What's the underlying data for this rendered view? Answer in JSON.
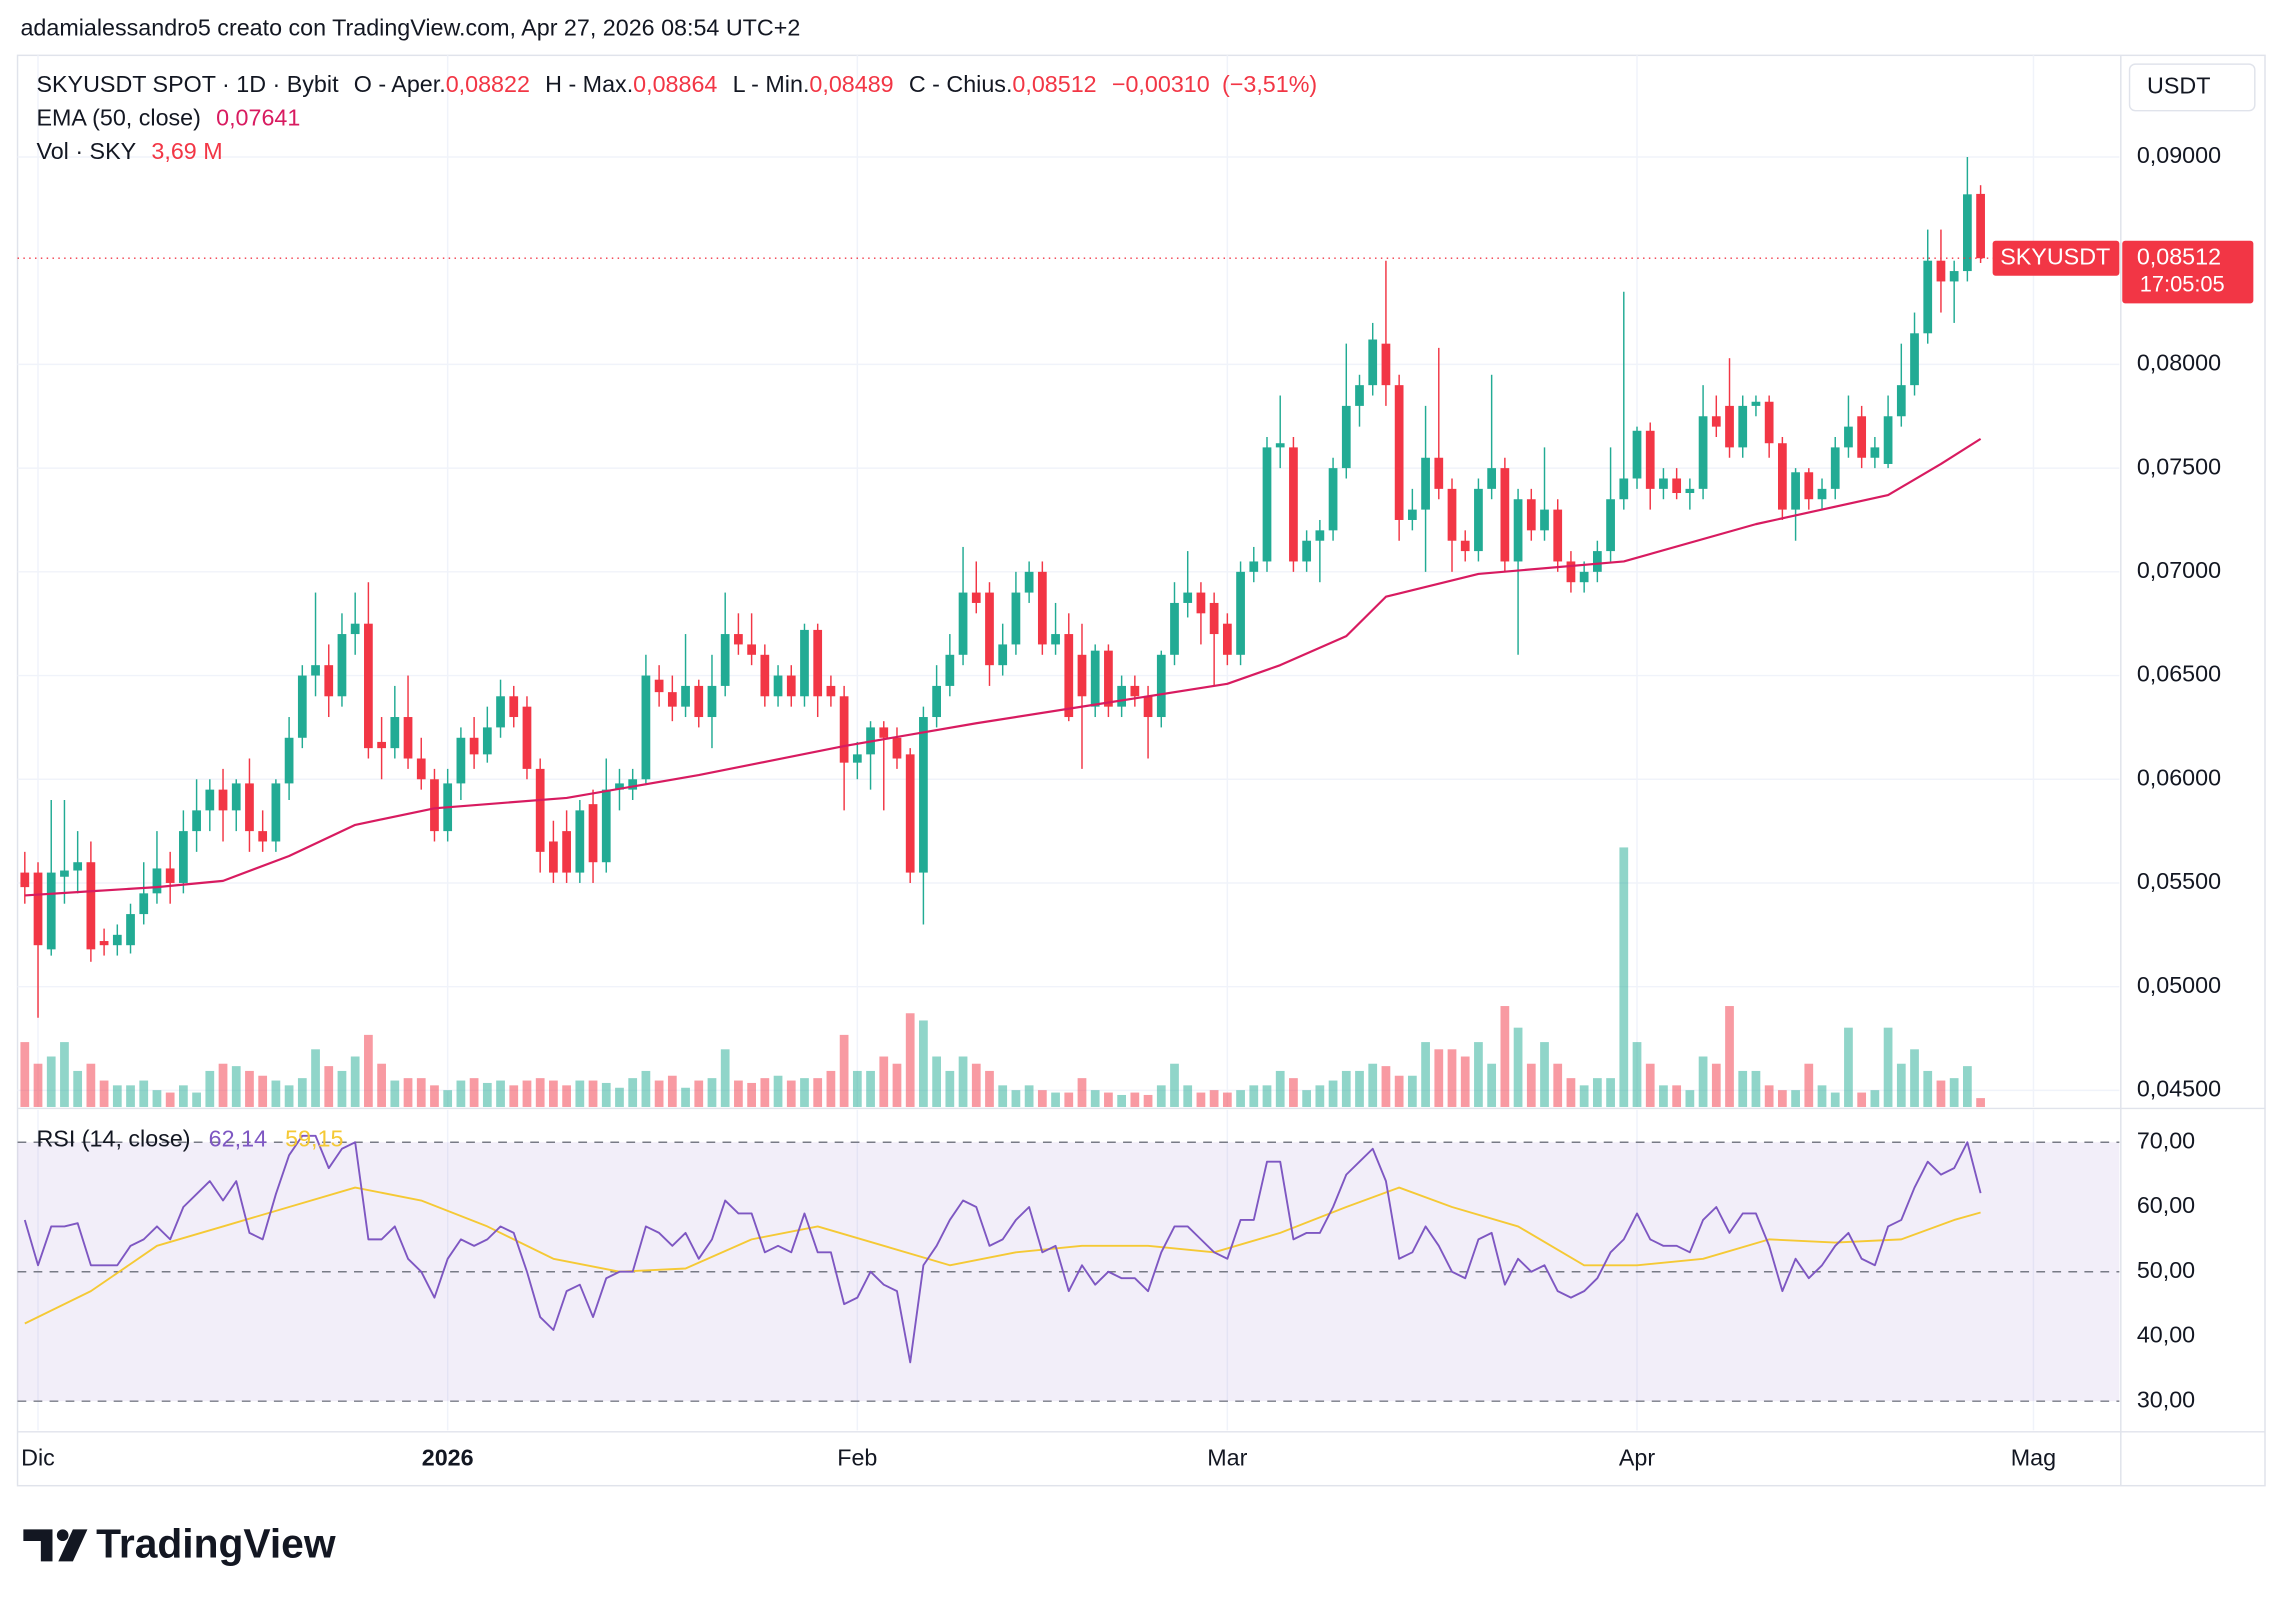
{
  "chart_data": {
    "type": "candlestick",
    "header": "adamialessandro5 creato con TradingView.com, Apr 27, 2026 08:54 UTC+2",
    "symbol": "SKYUSDT SPOT · 1D · Bybit",
    "legend": {
      "open_label": "O - Aper.",
      "open": {
        "value": 0.08822,
        "label": "0,08822"
      },
      "high_label": "H - Max.",
      "high": {
        "value": 0.08864,
        "label": "0,08864"
      },
      "low_label": "L - Min.",
      "low": {
        "value": 0.08489,
        "label": "0,08489"
      },
      "close_label": "C - Chius.",
      "close": {
        "value": 0.08512,
        "label": "0,08512"
      },
      "change": {
        "value": -0.0031,
        "label": "−0,00310"
      },
      "change_pct": {
        "value": -3.51,
        "label": "(−3,51%)"
      },
      "ema_label": "EMA (50, close)",
      "ema_last": {
        "value": 0.07641,
        "label": "0,07641"
      },
      "vol_label": "Vol · SKY",
      "vol_last": {
        "value": 3.69,
        "label": "3,69 M"
      }
    },
    "currency": "USDT",
    "price_tag": {
      "symbol": "SKYUSDT",
      "price": {
        "value": 0.08512,
        "label": "0,08512"
      },
      "countdown": "17:05:05"
    },
    "brand": "TradingView",
    "up_color": "#22ab94",
    "down_color": "#f23645",
    "grid": true,
    "xlim": [
      -0.55,
      158.5
    ],
    "xticks": [
      {
        "value": 1,
        "label": "Dic"
      },
      {
        "value": 32,
        "label": "2026"
      },
      {
        "value": 63,
        "label": "Feb"
      },
      {
        "value": 91,
        "label": "Mar"
      },
      {
        "value": 122,
        "label": "Apr"
      },
      {
        "value": 152,
        "label": "Mag"
      }
    ],
    "ylim": [
      0.0442,
      0.0949
    ],
    "yticks": [
      {
        "value": 0.045,
        "label": "0,04500"
      },
      {
        "value": 0.05,
        "label": "0,05000"
      },
      {
        "value": 0.055,
        "label": "0,05500"
      },
      {
        "value": 0.06,
        "label": "0,06000"
      },
      {
        "value": 0.065,
        "label": "0,06500"
      },
      {
        "value": 0.07,
        "label": "0,07000"
      },
      {
        "value": 0.075,
        "label": "0,07500"
      },
      {
        "value": 0.08,
        "label": "0,08000"
      },
      {
        "value": 0.09,
        "label": "0,09000"
      }
    ],
    "ohlc": [
      [
        0.0555,
        0.0565,
        0.054,
        0.0548
      ],
      [
        0.0555,
        0.056,
        0.0485,
        0.052
      ],
      [
        0.0518,
        0.059,
        0.0515,
        0.0555
      ],
      [
        0.0553,
        0.059,
        0.054,
        0.0556
      ],
      [
        0.0556,
        0.0575,
        0.0545,
        0.056
      ],
      [
        0.056,
        0.057,
        0.0512,
        0.0518
      ],
      [
        0.0522,
        0.0528,
        0.0515,
        0.052
      ],
      [
        0.052,
        0.053,
        0.0515,
        0.0525
      ],
      [
        0.052,
        0.054,
        0.0516,
        0.0535
      ],
      [
        0.0535,
        0.056,
        0.053,
        0.0545
      ],
      [
        0.0545,
        0.0575,
        0.054,
        0.0557
      ],
      [
        0.0557,
        0.0565,
        0.054,
        0.055
      ],
      [
        0.055,
        0.0585,
        0.0545,
        0.0575
      ],
      [
        0.0575,
        0.06,
        0.0565,
        0.0585
      ],
      [
        0.0585,
        0.06,
        0.0575,
        0.0595
      ],
      [
        0.0595,
        0.0605,
        0.057,
        0.0585
      ],
      [
        0.0585,
        0.06,
        0.0575,
        0.0598
      ],
      [
        0.0598,
        0.061,
        0.0565,
        0.0575
      ],
      [
        0.0575,
        0.0585,
        0.0565,
        0.057
      ],
      [
        0.057,
        0.06,
        0.0565,
        0.0598
      ],
      [
        0.0598,
        0.063,
        0.059,
        0.062
      ],
      [
        0.062,
        0.0655,
        0.0615,
        0.065
      ],
      [
        0.065,
        0.069,
        0.064,
        0.0655
      ],
      [
        0.0655,
        0.0665,
        0.063,
        0.064
      ],
      [
        0.064,
        0.068,
        0.0635,
        0.067
      ],
      [
        0.067,
        0.069,
        0.066,
        0.0675
      ],
      [
        0.0675,
        0.0695,
        0.061,
        0.0615
      ],
      [
        0.0618,
        0.063,
        0.06,
        0.0615
      ],
      [
        0.0615,
        0.0645,
        0.061,
        0.063
      ],
      [
        0.063,
        0.065,
        0.0605,
        0.061
      ],
      [
        0.061,
        0.062,
        0.0595,
        0.06
      ],
      [
        0.06,
        0.0605,
        0.057,
        0.0575
      ],
      [
        0.0575,
        0.0605,
        0.057,
        0.0598
      ],
      [
        0.0598,
        0.0625,
        0.059,
        0.062
      ],
      [
        0.062,
        0.063,
        0.0605,
        0.0612
      ],
      [
        0.0612,
        0.0635,
        0.0608,
        0.0625
      ],
      [
        0.0625,
        0.0648,
        0.062,
        0.064
      ],
      [
        0.064,
        0.0645,
        0.0625,
        0.063
      ],
      [
        0.0635,
        0.064,
        0.06,
        0.0605
      ],
      [
        0.0605,
        0.061,
        0.0555,
        0.0565
      ],
      [
        0.057,
        0.058,
        0.055,
        0.0555
      ],
      [
        0.0575,
        0.0585,
        0.055,
        0.0555
      ],
      [
        0.0555,
        0.059,
        0.055,
        0.0585
      ],
      [
        0.0588,
        0.0595,
        0.055,
        0.056
      ],
      [
        0.056,
        0.061,
        0.0555,
        0.0595
      ],
      [
        0.0595,
        0.0605,
        0.0585,
        0.0598
      ],
      [
        0.0595,
        0.0605,
        0.059,
        0.06
      ],
      [
        0.06,
        0.066,
        0.0598,
        0.065
      ],
      [
        0.0648,
        0.0655,
        0.0635,
        0.0642
      ],
      [
        0.0642,
        0.065,
        0.0628,
        0.0635
      ],
      [
        0.0635,
        0.067,
        0.063,
        0.0645
      ],
      [
        0.0645,
        0.0648,
        0.0625,
        0.063
      ],
      [
        0.063,
        0.066,
        0.0615,
        0.0645
      ],
      [
        0.0645,
        0.069,
        0.064,
        0.067
      ],
      [
        0.067,
        0.068,
        0.066,
        0.0665
      ],
      [
        0.0665,
        0.068,
        0.0655,
        0.066
      ],
      [
        0.066,
        0.0665,
        0.0635,
        0.064
      ],
      [
        0.064,
        0.0655,
        0.0635,
        0.065
      ],
      [
        0.065,
        0.0655,
        0.0635,
        0.064
      ],
      [
        0.064,
        0.0675,
        0.0635,
        0.0672
      ],
      [
        0.0672,
        0.0675,
        0.063,
        0.064
      ],
      [
        0.0645,
        0.065,
        0.0635,
        0.064
      ],
      [
        0.064,
        0.0645,
        0.0585,
        0.0608
      ],
      [
        0.0608,
        0.0618,
        0.06,
        0.0612
      ],
      [
        0.0612,
        0.0628,
        0.0595,
        0.0625
      ],
      [
        0.0625,
        0.0628,
        0.0585,
        0.062
      ],
      [
        0.062,
        0.0625,
        0.0605,
        0.061
      ],
      [
        0.0612,
        0.0615,
        0.055,
        0.0555
      ],
      [
        0.0555,
        0.0635,
        0.053,
        0.063
      ],
      [
        0.063,
        0.0655,
        0.0625,
        0.0645
      ],
      [
        0.0645,
        0.067,
        0.064,
        0.066
      ],
      [
        0.066,
        0.0712,
        0.0655,
        0.069
      ],
      [
        0.069,
        0.0705,
        0.068,
        0.0685
      ],
      [
        0.069,
        0.0695,
        0.0645,
        0.0655
      ],
      [
        0.0655,
        0.0675,
        0.065,
        0.0665
      ],
      [
        0.0665,
        0.07,
        0.066,
        0.069
      ],
      [
        0.069,
        0.0705,
        0.0685,
        0.07
      ],
      [
        0.07,
        0.0705,
        0.066,
        0.0665
      ],
      [
        0.0665,
        0.0685,
        0.066,
        0.067
      ],
      [
        0.067,
        0.068,
        0.0628,
        0.063
      ],
      [
        0.066,
        0.0675,
        0.0605,
        0.064
      ],
      [
        0.0635,
        0.0665,
        0.063,
        0.0662
      ],
      [
        0.0662,
        0.0665,
        0.063,
        0.0635
      ],
      [
        0.0635,
        0.065,
        0.063,
        0.0645
      ],
      [
        0.0645,
        0.065,
        0.0635,
        0.064
      ],
      [
        0.064,
        0.0645,
        0.061,
        0.063
      ],
      [
        0.063,
        0.0662,
        0.0625,
        0.066
      ],
      [
        0.066,
        0.0695,
        0.0655,
        0.0685
      ],
      [
        0.0685,
        0.071,
        0.0678,
        0.069
      ],
      [
        0.069,
        0.0695,
        0.0665,
        0.068
      ],
      [
        0.0685,
        0.069,
        0.0645,
        0.067
      ],
      [
        0.0675,
        0.068,
        0.0655,
        0.066
      ],
      [
        0.066,
        0.0705,
        0.0655,
        0.07
      ],
      [
        0.07,
        0.0712,
        0.0695,
        0.0705
      ],
      [
        0.0705,
        0.0765,
        0.07,
        0.076
      ],
      [
        0.076,
        0.0785,
        0.075,
        0.0762
      ],
      [
        0.076,
        0.0765,
        0.07,
        0.0705
      ],
      [
        0.0705,
        0.072,
        0.07,
        0.0715
      ],
      [
        0.0715,
        0.0725,
        0.0695,
        0.072
      ],
      [
        0.072,
        0.0755,
        0.0715,
        0.075
      ],
      [
        0.075,
        0.081,
        0.0745,
        0.078
      ],
      [
        0.078,
        0.0795,
        0.077,
        0.079
      ],
      [
        0.079,
        0.082,
        0.0785,
        0.0812
      ],
      [
        0.081,
        0.085,
        0.078,
        0.079
      ],
      [
        0.079,
        0.0795,
        0.0715,
        0.0725
      ],
      [
        0.0725,
        0.074,
        0.072,
        0.073
      ],
      [
        0.073,
        0.078,
        0.07,
        0.0755
      ],
      [
        0.0755,
        0.0808,
        0.0735,
        0.074
      ],
      [
        0.074,
        0.0745,
        0.07,
        0.0715
      ],
      [
        0.0715,
        0.072,
        0.0705,
        0.071
      ],
      [
        0.071,
        0.0745,
        0.0705,
        0.074
      ],
      [
        0.074,
        0.0795,
        0.0735,
        0.075
      ],
      [
        0.075,
        0.0755,
        0.07,
        0.0705
      ],
      [
        0.0705,
        0.074,
        0.066,
        0.0735
      ],
      [
        0.0735,
        0.074,
        0.0715,
        0.072
      ],
      [
        0.072,
        0.076,
        0.0715,
        0.073
      ],
      [
        0.073,
        0.0735,
        0.07,
        0.0705
      ],
      [
        0.0705,
        0.071,
        0.069,
        0.0695
      ],
      [
        0.0695,
        0.0705,
        0.069,
        0.07
      ],
      [
        0.07,
        0.0715,
        0.0695,
        0.071
      ],
      [
        0.071,
        0.076,
        0.0705,
        0.0735
      ],
      [
        0.0735,
        0.0835,
        0.073,
        0.0745
      ],
      [
        0.0745,
        0.077,
        0.074,
        0.0768
      ],
      [
        0.0768,
        0.0772,
        0.073,
        0.074
      ],
      [
        0.074,
        0.075,
        0.0735,
        0.0745
      ],
      [
        0.0745,
        0.075,
        0.0735,
        0.0738
      ],
      [
        0.0738,
        0.0745,
        0.073,
        0.074
      ],
      [
        0.074,
        0.079,
        0.0735,
        0.0775
      ],
      [
        0.0775,
        0.0785,
        0.0765,
        0.077
      ],
      [
        0.078,
        0.0803,
        0.0755,
        0.076
      ],
      [
        0.076,
        0.0785,
        0.0755,
        0.078
      ],
      [
        0.078,
        0.0785,
        0.0775,
        0.0782
      ],
      [
        0.0782,
        0.0785,
        0.0755,
        0.0762
      ],
      [
        0.0762,
        0.0765,
        0.0725,
        0.073
      ],
      [
        0.073,
        0.075,
        0.0715,
        0.0748
      ],
      [
        0.0748,
        0.075,
        0.073,
        0.0735
      ],
      [
        0.0735,
        0.0745,
        0.073,
        0.074
      ],
      [
        0.074,
        0.0765,
        0.0735,
        0.076
      ],
      [
        0.076,
        0.0785,
        0.0755,
        0.077
      ],
      [
        0.0775,
        0.078,
        0.075,
        0.0755
      ],
      [
        0.0755,
        0.0765,
        0.075,
        0.076
      ],
      [
        0.0752,
        0.0785,
        0.075,
        0.0775
      ],
      [
        0.0775,
        0.081,
        0.077,
        0.079
      ],
      [
        0.079,
        0.0825,
        0.0785,
        0.0815
      ],
      [
        0.0815,
        0.0865,
        0.081,
        0.085
      ],
      [
        0.085,
        0.0865,
        0.0825,
        0.084
      ],
      [
        0.084,
        0.085,
        0.082,
        0.0845
      ],
      [
        0.0845,
        0.09,
        0.084,
        0.0882
      ],
      [
        0.08822,
        0.08864,
        0.08489,
        0.08512
      ]
    ],
    "volume": [
      27,
      18,
      21,
      27,
      15,
      18,
      11,
      9,
      9,
      11,
      7,
      6,
      9,
      6,
      15,
      18,
      17,
      15,
      13,
      11,
      9,
      12,
      24,
      17,
      15,
      21,
      30,
      18,
      11,
      12,
      12,
      9,
      7,
      11,
      12,
      10,
      11,
      9,
      11,
      12,
      11,
      9,
      11,
      11,
      10,
      8,
      12,
      15,
      11,
      13,
      8,
      11,
      12,
      24,
      11,
      10,
      12,
      13,
      11,
      12,
      12,
      15,
      30,
      15,
      15,
      21,
      18,
      39,
      36,
      21,
      15,
      21,
      18,
      15,
      9,
      7,
      9,
      7,
      6,
      6,
      12,
      7,
      6,
      5,
      6,
      5,
      9,
      18,
      9,
      6,
      7,
      6,
      7,
      9,
      9,
      15,
      12,
      7,
      9,
      11,
      15,
      15,
      18,
      17,
      13,
      13,
      27,
      24,
      24,
      21,
      27,
      18,
      42,
      33,
      18,
      27,
      18,
      12,
      9,
      12,
      12,
      108,
      27,
      18,
      9,
      9,
      7,
      21,
      18,
      42,
      15,
      15,
      9,
      7,
      7,
      18,
      9,
      6,
      33,
      6,
      7,
      33,
      18,
      24,
      15,
      11,
      12,
      17,
      3.69
    ],
    "ema": {
      "color": "#d81b60",
      "x": [
        0,
        5,
        10,
        15,
        20,
        25,
        31,
        41,
        51,
        62,
        72,
        82,
        91,
        95,
        100,
        103,
        110,
        121,
        131,
        136,
        141,
        145,
        148
      ],
      "values": [
        0.0544,
        0.0546,
        0.0548,
        0.0551,
        0.0563,
        0.0578,
        0.0586,
        0.0591,
        0.0602,
        0.0616,
        0.0627,
        0.0637,
        0.0646,
        0.0655,
        0.0669,
        0.0688,
        0.0699,
        0.0705,
        0.0723,
        0.073,
        0.0737,
        0.0752,
        0.07641
      ]
    },
    "rsi": {
      "label": "RSI (14, close)",
      "color": "#7e57c2",
      "ylim": [
        25.5,
        75
      ],
      "yticks": [
        {
          "value": 30,
          "label": "30,00"
        },
        {
          "value": 40,
          "label": "40,00"
        },
        {
          "value": 50,
          "label": "50,00"
        },
        {
          "value": 60,
          "label": "60,00"
        },
        {
          "value": 70,
          "label": "70,00"
        }
      ],
      "levels": [
        70,
        50,
        30
      ],
      "last": {
        "value": 62.14,
        "label": "62,14"
      },
      "values": [
        58,
        51,
        57,
        57,
        57.5,
        51,
        51,
        51,
        54,
        55,
        57,
        55,
        60,
        62,
        64,
        61,
        64,
        56,
        55,
        62,
        68,
        71,
        71,
        66,
        69,
        70,
        55,
        55,
        57,
        52,
        50,
        46,
        52,
        55,
        54,
        55,
        57,
        56,
        50,
        43,
        41,
        47,
        48,
        43,
        49,
        50,
        50,
        57,
        56,
        54,
        56,
        52,
        55,
        61,
        59,
        59,
        53,
        54,
        53,
        59,
        53,
        53,
        45,
        46,
        50,
        48,
        47,
        36,
        51,
        54,
        58,
        61,
        60,
        54,
        55,
        58,
        60,
        53,
        54,
        47,
        51,
        48,
        50,
        49,
        49,
        47,
        53,
        57,
        57,
        55,
        53,
        52,
        58,
        58,
        67,
        67,
        55,
        56,
        56,
        60,
        65,
        67,
        69,
        64,
        52,
        53,
        57,
        54,
        50,
        49,
        55,
        56,
        48,
        52,
        50,
        51,
        47,
        46,
        47,
        49,
        53,
        55,
        59,
        55,
        54,
        54,
        53,
        58,
        60,
        56,
        59,
        59,
        54,
        47,
        52,
        49,
        51,
        54,
        56,
        52,
        51,
        57,
        58,
        63,
        67,
        65,
        66,
        70,
        62.14
      ]
    },
    "rsi_ma": {
      "color": "#f5c935",
      "last": {
        "value": 59.15,
        "label": "59,15"
      },
      "x": [
        0,
        5,
        10,
        15,
        20,
        25,
        30,
        35,
        40,
        45,
        50,
        55,
        60,
        65,
        70,
        75,
        80,
        85,
        90,
        95,
        100,
        104,
        108,
        113,
        118,
        122,
        127,
        132,
        137,
        142,
        146,
        148
      ],
      "values": [
        42,
        47,
        54,
        57,
        60,
        63,
        61,
        57,
        52,
        50,
        50.5,
        55,
        57,
        54,
        51,
        53,
        54,
        54,
        53,
        56,
        60,
        63,
        60,
        57,
        51,
        51,
        52,
        55,
        54.5,
        55,
        58,
        59.15
      ]
    }
  }
}
